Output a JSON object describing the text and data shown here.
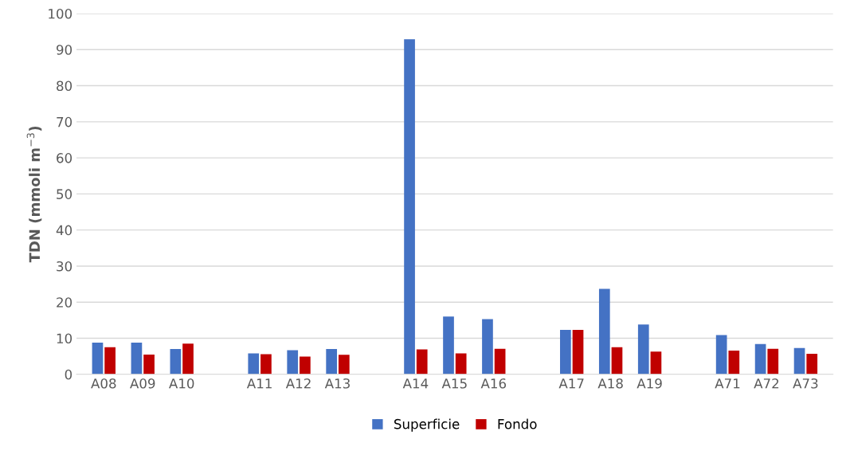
{
  "chart_data": {
    "type": "bar",
    "ylabel": "TDN (mmoli m$^{−3}$)",
    "categories": [
      "A08",
      "A09",
      "A10",
      null,
      "A11",
      "A12",
      "A13",
      null,
      "A14",
      "A15",
      "A16",
      null,
      "A17",
      "A18",
      "A19",
      null,
      "A71",
      "A72",
      "A73"
    ],
    "series": [
      {
        "name": "Superficie",
        "color": "#4472c4",
        "values": [
          8.8,
          8.8,
          7.0,
          null,
          5.8,
          6.7,
          7.0,
          null,
          92.9,
          16.0,
          15.3,
          null,
          12.3,
          23.7,
          13.8,
          null,
          10.9,
          8.4,
          7.3
        ]
      },
      {
        "name": "Fondo",
        "color": "#c00000",
        "values": [
          7.5,
          5.5,
          8.5,
          null,
          5.6,
          4.9,
          5.4,
          null,
          6.9,
          5.8,
          7.1,
          null,
          12.3,
          7.5,
          6.3,
          null,
          6.6,
          7.1,
          5.7
        ]
      }
    ],
    "ylim": [
      0,
      100
    ],
    "yticks": [
      0,
      10,
      20,
      30,
      40,
      50,
      60,
      70,
      80,
      90,
      100
    ],
    "grid": "y",
    "legend": "bottom"
  }
}
